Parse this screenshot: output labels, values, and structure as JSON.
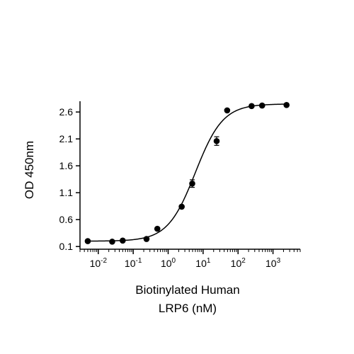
{
  "chart_data": {
    "type": "scatter",
    "xlabel": [
      "Biotinylated Human",
      "LRP6 (nM)"
    ],
    "ylabel": "OD 450nm",
    "x_scale": "log",
    "x_tick_values": [
      0.01,
      0.1,
      1,
      10,
      100,
      1000
    ],
    "x_tick_labels": [
      {
        "base": "10",
        "exp": "-2"
      },
      {
        "base": "10",
        "exp": "-1"
      },
      {
        "base": "10",
        "exp": "0"
      },
      {
        "base": "10",
        "exp": "1"
      },
      {
        "base": "10",
        "exp": "2"
      },
      {
        "base": "10",
        "exp": "3"
      }
    ],
    "xlim": [
      0.003,
      6000
    ],
    "y_ticks": [
      "0.1",
      "0.6",
      "1.1",
      "1.6",
      "2.1",
      "2.6"
    ],
    "ylim": [
      0.05,
      2.8
    ],
    "grid": false,
    "series": [
      {
        "points": [
          {
            "x": 0.005,
            "y": 0.2
          },
          {
            "x": 0.025,
            "y": 0.19
          },
          {
            "x": 0.05,
            "y": 0.21
          },
          {
            "x": 0.24,
            "y": 0.24
          },
          {
            "x": 0.49,
            "y": 0.43
          },
          {
            "x": 2.44,
            "y": 0.84
          },
          {
            "x": 4.88,
            "y": 1.27,
            "err": 0.07
          },
          {
            "x": 24.4,
            "y": 2.06,
            "err": 0.08
          },
          {
            "x": 48.8,
            "y": 2.63
          },
          {
            "x": 244,
            "y": 2.71
          },
          {
            "x": 488,
            "y": 2.72
          },
          {
            "x": 2440,
            "y": 2.73
          }
        ],
        "fit": {
          "model": "4PL",
          "bottom": 0.2,
          "top": 2.75,
          "ec50": 6.0,
          "hill": 1.1
        }
      }
    ]
  }
}
